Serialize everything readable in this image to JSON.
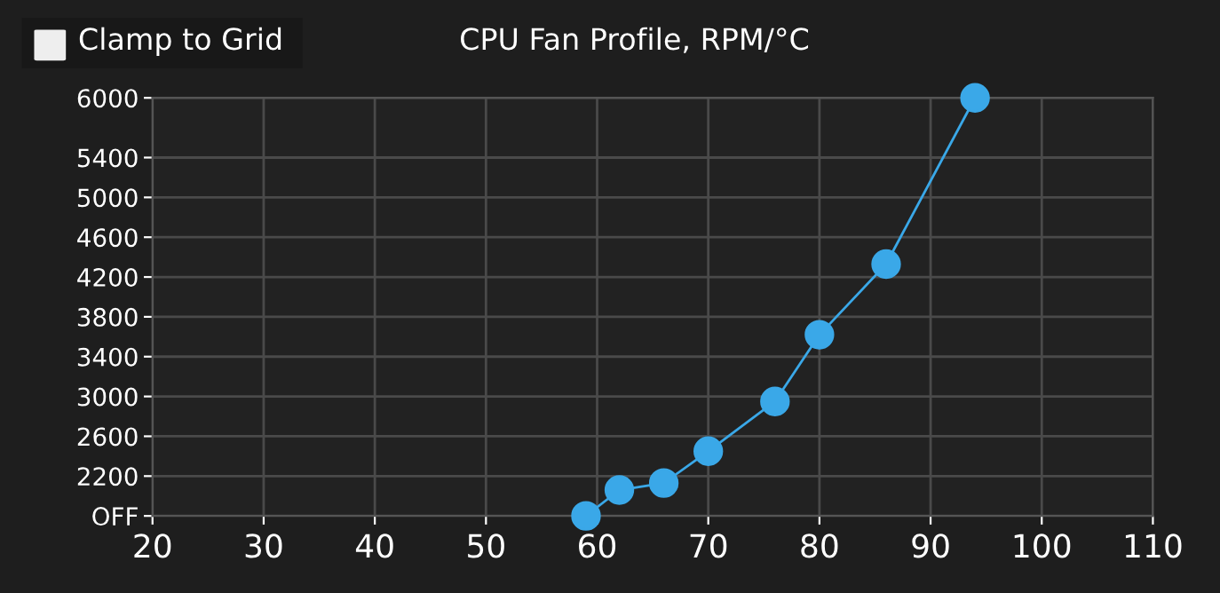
{
  "chart_data": {
    "type": "line",
    "title": "CPU Fan Profile, RPM/°C",
    "annotations": [
      "Clamp to Grid"
    ],
    "x": [
      59,
      62,
      66,
      70,
      76,
      80,
      86,
      94
    ],
    "series": [
      {
        "color": "#3aa8e8",
        "values": [
          1800,
          2060,
          2130,
          2450,
          2950,
          3620,
          4330,
          6000
        ]
      }
    ],
    "xlim": [
      20,
      110
    ],
    "xticks": [
      20,
      30,
      40,
      50,
      60,
      70,
      80,
      90,
      100,
      110
    ],
    "ylim": [
      1800,
      6000
    ],
    "yticks": [
      {
        "value": 1800,
        "label": "OFF"
      },
      2200,
      2600,
      3000,
      3400,
      3800,
      4200,
      4600,
      5000,
      5400,
      6000
    ],
    "grid": true,
    "marker": "circle",
    "line_style": "solid",
    "legend": false
  }
}
